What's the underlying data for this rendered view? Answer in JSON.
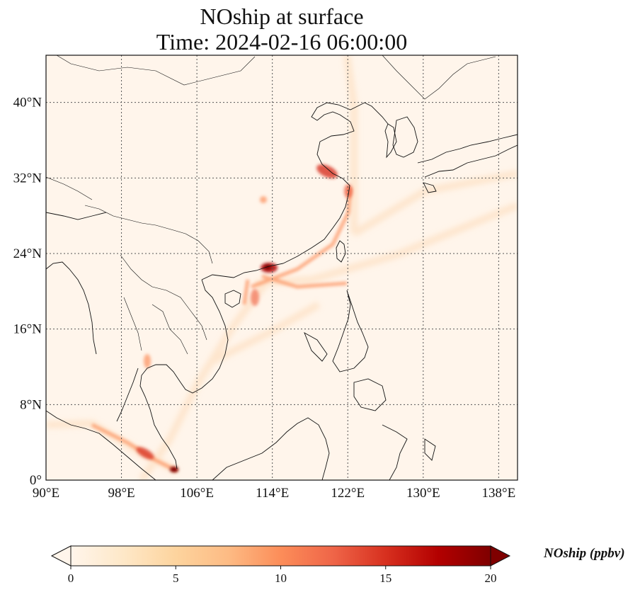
{
  "title_line1": "NOship at surface",
  "title_line2": "Time: 2024-02-16 06:00:00",
  "map": {
    "projection": "PlateCarree",
    "lon_range": [
      90,
      140
    ],
    "lat_range": [
      0,
      45
    ],
    "x_ticks": [
      "90°E",
      "98°E",
      "106°E",
      "114°E",
      "122°E",
      "130°E",
      "138°E"
    ],
    "y_ticks": [
      "0°",
      "8°N",
      "16°N",
      "24°N",
      "32°N",
      "40°N"
    ],
    "gridlines": "dotted",
    "coastlines": true,
    "borders": true,
    "field_colors": {
      "low": "#fff5eb",
      "mid": "#fd8d3c",
      "high": "#7f0000"
    }
  },
  "colorbar": {
    "label": "NOship (ppbv)",
    "ticks": [
      "0",
      "5",
      "10",
      "15",
      "20"
    ],
    "min": 0,
    "max": 20,
    "extend": "both",
    "colormap": "OrRd",
    "colors": [
      "#fff5eb",
      "#fee8c8",
      "#fdd49e",
      "#fdbb84",
      "#fc8d59",
      "#ef6548",
      "#d7301f",
      "#b30000",
      "#7f0000"
    ]
  }
}
